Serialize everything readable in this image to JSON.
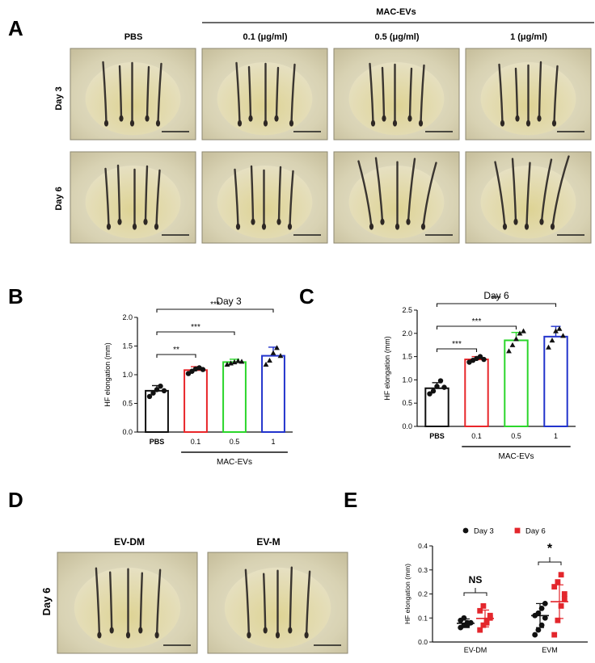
{
  "panel_letters": {
    "a": "A",
    "b": "B",
    "c": "C",
    "d": "D",
    "e": "E"
  },
  "panel_a": {
    "group_label": "MAC-EVs",
    "columns": [
      "PBS",
      "0.1 (μg/ml)",
      "0.5 (μg/ml)",
      "1 (μg/ml)"
    ],
    "rows": [
      "Day 3",
      "Day 6"
    ]
  },
  "panel_d": {
    "row_label": "Day 6",
    "columns": [
      "EV-DM",
      "EV-M"
    ]
  },
  "colors": {
    "pbs": "#111111",
    "c01": "#e8262a",
    "c05": "#2bd62b",
    "c1": "#2233cc",
    "day3": "#111111",
    "day6": "#e3262c"
  },
  "chart_data": [
    {
      "id": "B",
      "type": "bar",
      "title": "Day 3",
      "ylabel": "HF elongation (mm)",
      "ylim": [
        0,
        2.0
      ],
      "yticks": [
        "0.0",
        "0.5",
        "1.0",
        "1.5",
        "2.0"
      ],
      "categories": [
        "PBS",
        "0.1",
        "0.5",
        "1"
      ],
      "group_label": "MAC-EVs",
      "values": [
        0.72,
        1.08,
        1.22,
        1.33
      ],
      "errors": [
        0.09,
        0.06,
        0.05,
        0.15
      ],
      "points": [
        [
          0.62,
          0.68,
          0.74,
          0.8,
          0.72
        ],
        [
          1.02,
          1.06,
          1.1,
          1.12,
          1.09
        ],
        [
          1.18,
          1.2,
          1.22,
          1.24,
          1.23
        ],
        [
          1.18,
          1.25,
          1.38,
          1.47,
          1.33
        ]
      ],
      "markers": [
        "circle",
        "circle",
        "triangle",
        "triangle"
      ],
      "significance": [
        {
          "from": 0,
          "to": 1,
          "label": "**"
        },
        {
          "from": 0,
          "to": 2,
          "label": "***"
        },
        {
          "from": 0,
          "to": 3,
          "label": "***"
        }
      ]
    },
    {
      "id": "C",
      "type": "bar",
      "title": "Day 6",
      "ylabel": "HF elongation (mm)",
      "ylim": [
        0,
        2.5
      ],
      "yticks": [
        "0.0",
        "0.5",
        "1.0",
        "1.5",
        "2.0",
        "2.5"
      ],
      "categories": [
        "PBS",
        "0.1",
        "0.5",
        "1"
      ],
      "group_label": "MAC-EVs",
      "values": [
        0.82,
        1.44,
        1.85,
        1.93
      ],
      "errors": [
        0.12,
        0.06,
        0.17,
        0.22
      ],
      "points": [
        [
          0.7,
          0.76,
          0.86,
          0.98,
          0.84
        ],
        [
          1.38,
          1.42,
          1.46,
          1.5,
          1.44
        ],
        [
          1.62,
          1.75,
          1.88,
          2.0,
          2.05
        ],
        [
          1.7,
          1.85,
          2.05,
          2.1,
          1.95
        ]
      ],
      "markers": [
        "circle",
        "circle",
        "triangle",
        "triangle"
      ],
      "significance": [
        {
          "from": 0,
          "to": 1,
          "label": "***"
        },
        {
          "from": 0,
          "to": 2,
          "label": "***"
        },
        {
          "from": 0,
          "to": 3,
          "label": "***"
        }
      ]
    },
    {
      "id": "E",
      "type": "scatter",
      "ylabel": "HF elongation (mm)",
      "ylim": [
        0,
        0.4
      ],
      "yticks": [
        "0.0",
        "0.1",
        "0.2",
        "0.3",
        "0.4"
      ],
      "categories": [
        "EV-DM",
        "EVM"
      ],
      "legend_position": "top",
      "series": [
        {
          "name": "Day 3",
          "marker": "circle",
          "points": [
            [
              0.06,
              0.07,
              0.07,
              0.08,
              0.09,
              0.1,
              0.08
            ],
            [
              0.03,
              0.05,
              0.07,
              0.1,
              0.11,
              0.12,
              0.14,
              0.16
            ]
          ],
          "means": [
            0.078,
            0.11
          ],
          "sd": [
            0.018,
            0.05
          ]
        },
        {
          "name": "Day 6",
          "marker": "square",
          "points": [
            [
              0.05,
              0.07,
              0.09,
              0.11,
              0.13,
              0.15,
              0.08,
              0.1
            ],
            [
              0.03,
              0.09,
              0.15,
              0.2,
              0.23,
              0.25,
              0.28,
              0.18
            ]
          ],
          "means": [
            0.098,
            0.168
          ],
          "sd": [
            0.035,
            0.07
          ]
        }
      ],
      "significance": [
        {
          "group": 0,
          "label": "NS"
        },
        {
          "group": 1,
          "label": "*"
        }
      ]
    }
  ]
}
